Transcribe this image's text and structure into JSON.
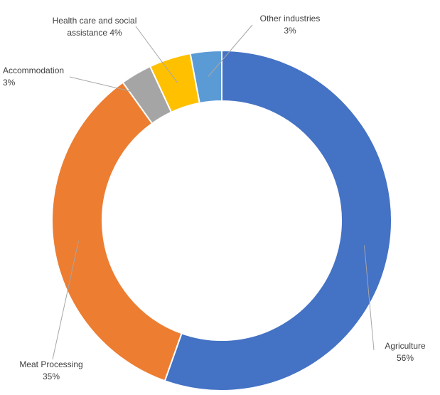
{
  "chart_data": {
    "type": "doughnut",
    "slices": [
      {
        "name": "Agriculture",
        "value": 56,
        "display": "56%",
        "color": "#4472C4"
      },
      {
        "name": "Meat Processing",
        "value": 35,
        "display": "35%",
        "color": "#ED7D31"
      },
      {
        "name": "Accommodation",
        "value": 3,
        "display": "3%",
        "color": "#A5A5A5"
      },
      {
        "name": "Health care and social assistance",
        "value": 4,
        "display": "4%",
        "color": "#FFC000"
      },
      {
        "name": "Other industries",
        "value": 3,
        "display": "3%",
        "color": "#5B9BD5"
      }
    ],
    "labels": {
      "agriculture": {
        "line1": "Agriculture",
        "line2": "56%"
      },
      "meat": {
        "line1": "Meat Processing",
        "line2": "35%"
      },
      "accommodation": {
        "line1": "Accommodation",
        "line2": "3%"
      },
      "health": {
        "line1": "Health care and social",
        "line2": "assistance 4%"
      },
      "other": {
        "line1": "Other industries",
        "line2": "3%"
      }
    },
    "legend": "none"
  }
}
